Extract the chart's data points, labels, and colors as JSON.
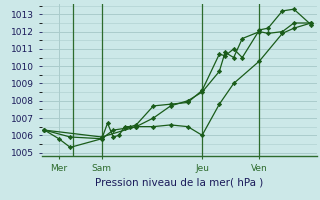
{
  "background_color": "#cce8e8",
  "grid_color": "#aacccc",
  "line_color": "#1a5c1a",
  "marker_color": "#1a5c1a",
  "xlabel": "Pression niveau de la mer( hPa )",
  "ylim": [
    1004.8,
    1013.6
  ],
  "yticks": [
    1005,
    1006,
    1007,
    1008,
    1009,
    1010,
    1011,
    1012,
    1013
  ],
  "xtick_labels": [
    "Mer",
    "Sam",
    "Jeu",
    "Ven"
  ],
  "xtick_positions": [
    0.5,
    2.0,
    5.5,
    7.5
  ],
  "xvlines": [
    1.0,
    2.0,
    5.5,
    7.5
  ],
  "xlim": [
    -0.1,
    9.5
  ],
  "series1": [
    [
      0.0,
      1006.3
    ],
    [
      0.5,
      1005.8
    ],
    [
      0.9,
      1005.3
    ],
    [
      2.0,
      1005.8
    ],
    [
      2.2,
      1006.7
    ],
    [
      2.4,
      1005.9
    ],
    [
      2.6,
      1006.0
    ],
    [
      2.8,
      1006.5
    ],
    [
      3.0,
      1006.5
    ],
    [
      3.2,
      1006.6
    ],
    [
      3.8,
      1007.7
    ],
    [
      4.4,
      1007.8
    ],
    [
      5.0,
      1007.9
    ],
    [
      5.5,
      1008.6
    ],
    [
      6.1,
      1010.7
    ],
    [
      6.3,
      1010.6
    ],
    [
      6.6,
      1011.0
    ],
    [
      6.9,
      1010.5
    ],
    [
      7.5,
      1012.1
    ],
    [
      7.8,
      1012.2
    ],
    [
      8.3,
      1013.2
    ],
    [
      8.7,
      1013.3
    ],
    [
      9.3,
      1012.4
    ]
  ],
  "series2": [
    [
      0.0,
      1006.3
    ],
    [
      0.9,
      1005.9
    ],
    [
      2.0,
      1005.8
    ],
    [
      2.4,
      1006.3
    ],
    [
      2.8,
      1006.4
    ],
    [
      3.2,
      1006.5
    ],
    [
      3.8,
      1007.0
    ],
    [
      4.4,
      1007.7
    ],
    [
      5.0,
      1008.0
    ],
    [
      5.5,
      1008.5
    ],
    [
      6.1,
      1009.7
    ],
    [
      6.3,
      1010.8
    ],
    [
      6.6,
      1010.5
    ],
    [
      6.9,
      1011.6
    ],
    [
      7.5,
      1012.0
    ],
    [
      7.8,
      1011.9
    ],
    [
      8.3,
      1012.0
    ],
    [
      8.7,
      1012.5
    ],
    [
      9.3,
      1012.5
    ]
  ],
  "series3": [
    [
      0.0,
      1006.3
    ],
    [
      2.0,
      1005.9
    ],
    [
      3.2,
      1006.5
    ],
    [
      3.8,
      1006.5
    ],
    [
      4.4,
      1006.6
    ],
    [
      5.0,
      1006.5
    ],
    [
      5.5,
      1006.0
    ],
    [
      6.1,
      1007.8
    ],
    [
      6.6,
      1009.0
    ],
    [
      7.5,
      1010.3
    ],
    [
      8.3,
      1011.9
    ],
    [
      8.7,
      1012.2
    ],
    [
      9.3,
      1012.5
    ]
  ]
}
